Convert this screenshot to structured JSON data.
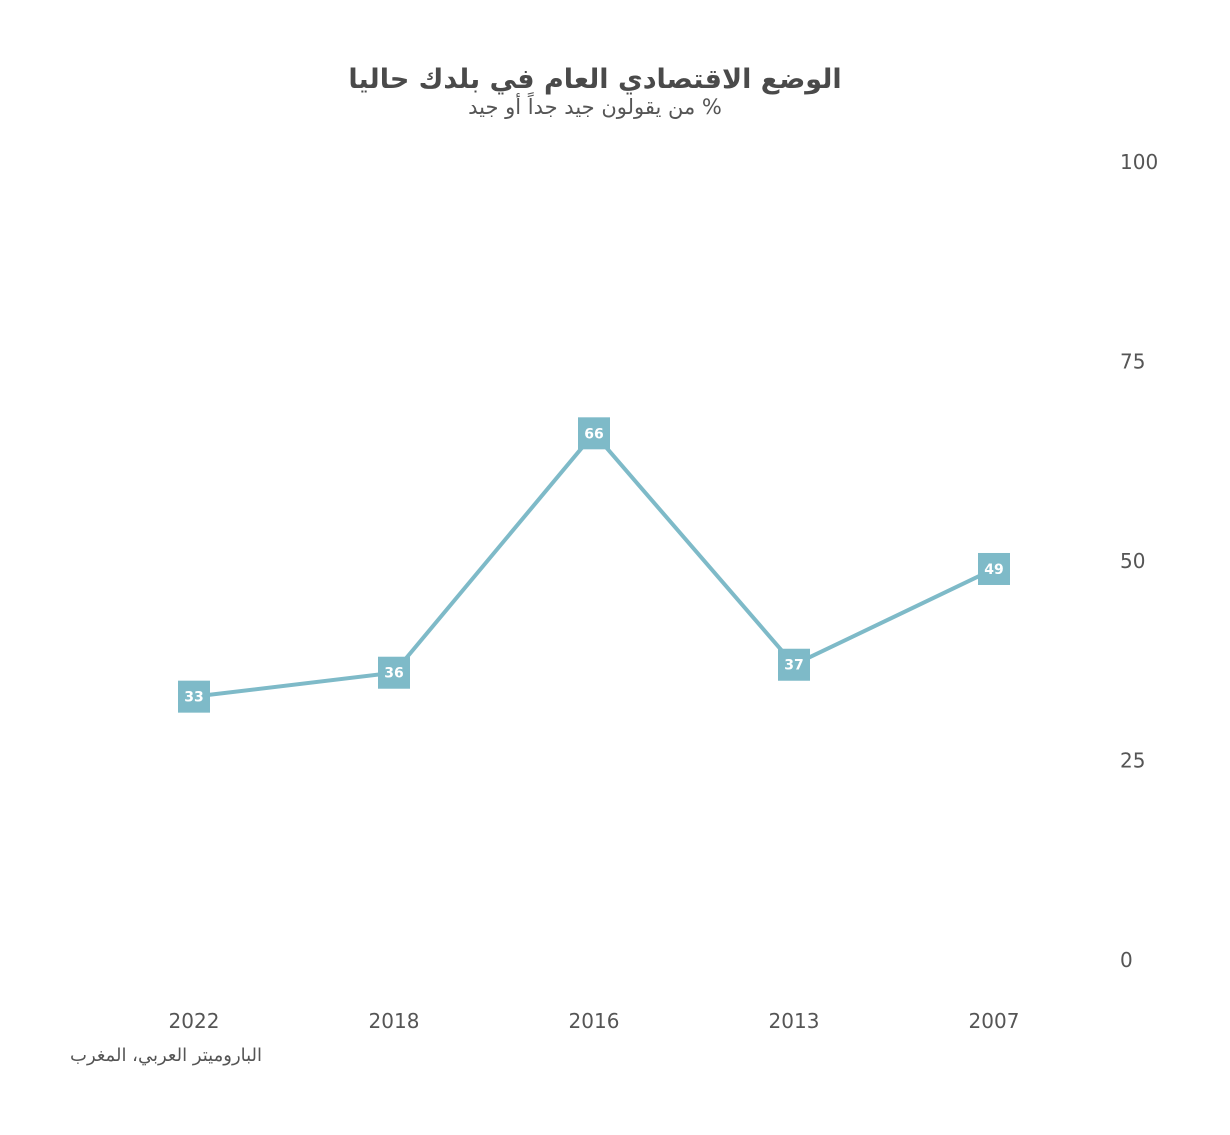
{
  "chart_data": {
    "type": "line",
    "title": "الوضع الاقتصادي العام في بلدك حاليا",
    "subtitle": "% من يقولون جيد جداً أو جيد",
    "source": "الباروميتر العربي، المغرب",
    "categories": [
      "2022",
      "2018",
      "2016",
      "2013",
      "2007"
    ],
    "series": [
      {
        "values": [
          33,
          36,
          66,
          37,
          49
        ],
        "color": "#7ebac8"
      }
    ],
    "y_ticks": [
      "100",
      "75",
      "50",
      "25",
      "0"
    ],
    "ylim": [
      0,
      100
    ],
    "y_axis_position": "right",
    "grid": false,
    "data_labels": true,
    "marker": "square"
  }
}
